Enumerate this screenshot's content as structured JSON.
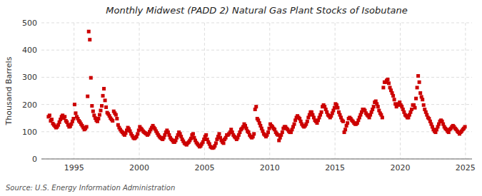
{
  "chart_data": {
    "type": "scatter",
    "title": "Monthly Midwest (PADD 2) Natural Gas Plant Stocks of Isobutane",
    "y_label": "Thousand Barrels",
    "source": "Source: U.S. Energy Information Administration",
    "color": "#cc0000",
    "marker": "square",
    "grid": true,
    "xlim": [
      1992.5,
      2025.5
    ],
    "xticks": [
      1995,
      2000,
      2005,
      2010,
      2015,
      2020,
      2025
    ],
    "ylim": [
      0,
      500
    ],
    "yticks": [
      0,
      100,
      200,
      300,
      400,
      500
    ],
    "x": [
      1993.0416666666667,
      1993.125,
      1993.2083333333333,
      1993.2916666666667,
      1993.375,
      1993.4583333333333,
      1993.5416666666667,
      1993.625,
      1993.7083333333333,
      1993.7916666666667,
      1993.875,
      1993.9583333333333,
      1994.0416666666667,
      1994.125,
      1994.2083333333333,
      1994.2916666666667,
      1994.375,
      1994.4583333333333,
      1994.5416666666667,
      1994.625,
      1994.7083333333333,
      1994.7916666666667,
      1994.875,
      1994.9583333333333,
      1995.0416666666667,
      1995.125,
      1995.2083333333333,
      1995.2916666666667,
      1995.375,
      1995.4583333333333,
      1995.5416666666667,
      1995.625,
      1995.7083333333333,
      1995.7916666666667,
      1995.875,
      1995.9583333333333,
      1996.0416666666667,
      1996.125,
      1996.2083333333333,
      1996.2916666666667,
      1996.375,
      1996.4583333333333,
      1996.5416666666667,
      1996.625,
      1996.7083333333333,
      1996.7916666666667,
      1996.875,
      1996.9583333333333,
      1997.0416666666667,
      1997.125,
      1997.2083333333333,
      1997.2916666666667,
      1997.375,
      1997.4583333333333,
      1997.5416666666667,
      1997.625,
      1997.7083333333333,
      1997.7916666666667,
      1997.875,
      1997.9583333333333,
      1998.0416666666667,
      1998.125,
      1998.2083333333333,
      1998.2916666666667,
      1998.375,
      1998.4583333333333,
      1998.5416666666667,
      1998.625,
      1998.7083333333333,
      1998.7916666666667,
      1998.875,
      1998.9583333333333,
      1999.0416666666667,
      1999.125,
      1999.2083333333333,
      1999.2916666666667,
      1999.375,
      1999.4583333333333,
      1999.5416666666667,
      1999.625,
      1999.7083333333333,
      1999.7916666666667,
      1999.875,
      1999.9583333333333,
      2000.0416666666667,
      2000.125,
      2000.2083333333333,
      2000.2916666666667,
      2000.375,
      2000.4583333333333,
      2000.5416666666667,
      2000.625,
      2000.7083333333333,
      2000.7916666666667,
      2000.875,
      2000.9583333333333,
      2001.0416666666667,
      2001.125,
      2001.2083333333333,
      2001.2916666666667,
      2001.375,
      2001.4583333333333,
      2001.5416666666667,
      2001.625,
      2001.7083333333333,
      2001.7916666666667,
      2001.875,
      2001.9583333333333,
      2002.0416666666667,
      2002.125,
      2002.2083333333333,
      2002.2916666666667,
      2002.375,
      2002.4583333333333,
      2002.5416666666667,
      2002.625,
      2002.7083333333333,
      2002.7916666666667,
      2002.875,
      2002.9583333333333,
      2003.0416666666667,
      2003.125,
      2003.2083333333333,
      2003.2916666666667,
      2003.375,
      2003.4583333333333,
      2003.5416666666667,
      2003.625,
      2003.7083333333333,
      2003.7916666666667,
      2003.875,
      2003.9583333333333,
      2004.0416666666667,
      2004.125,
      2004.2083333333333,
      2004.2916666666667,
      2004.375,
      2004.4583333333333,
      2004.5416666666667,
      2004.625,
      2004.7083333333333,
      2004.7916666666667,
      2004.875,
      2004.9583333333333,
      2005.0416666666667,
      2005.125,
      2005.2083333333333,
      2005.2916666666667,
      2005.375,
      2005.4583333333333,
      2005.5416666666667,
      2005.625,
      2005.7083333333333,
      2005.7916666666667,
      2005.875,
      2005.9583333333333,
      2006.0416666666667,
      2006.125,
      2006.2083333333333,
      2006.2916666666667,
      2006.375,
      2006.4583333333333,
      2006.5416666666667,
      2006.625,
      2006.7083333333333,
      2006.7916666666667,
      2006.875,
      2006.9583333333333,
      2007.0416666666667,
      2007.125,
      2007.2083333333333,
      2007.2916666666667,
      2007.375,
      2007.4583333333333,
      2007.5416666666667,
      2007.625,
      2007.7083333333333,
      2007.7916666666667,
      2007.875,
      2007.9583333333333,
      2008.0416666666667,
      2008.125,
      2008.2083333333333,
      2008.2916666666667,
      2008.375,
      2008.4583333333333,
      2008.5416666666667,
      2008.625,
      2008.7083333333333,
      2008.7916666666667,
      2008.875,
      2008.9583333333333,
      2009.0416666666667,
      2009.125,
      2009.2083333333333,
      2009.2916666666667,
      2009.375,
      2009.4583333333333,
      2009.5416666666667,
      2009.625,
      2009.7083333333333,
      2009.7916666666667,
      2009.875,
      2009.9583333333333,
      2010.0416666666667,
      2010.125,
      2010.2083333333333,
      2010.2916666666667,
      2010.375,
      2010.4583333333333,
      2010.5416666666667,
      2010.625,
      2010.7083333333333,
      2010.7916666666667,
      2010.875,
      2010.9583333333333,
      2011.0416666666667,
      2011.125,
      2011.2083333333333,
      2011.2916666666667,
      2011.375,
      2011.4583333333333,
      2011.5416666666667,
      2011.625,
      2011.7083333333333,
      2011.7916666666667,
      2011.875,
      2011.9583333333333,
      2012.0416666666667,
      2012.125,
      2012.2083333333333,
      2012.2916666666667,
      2012.375,
      2012.4583333333333,
      2012.5416666666667,
      2012.625,
      2012.7083333333333,
      2012.7916666666667,
      2012.875,
      2012.9583333333333,
      2013.0416666666667,
      2013.125,
      2013.2083333333333,
      2013.2916666666667,
      2013.375,
      2013.4583333333333,
      2013.5416666666667,
      2013.625,
      2013.7083333333333,
      2013.7916666666667,
      2013.875,
      2013.9583333333333,
      2014.0416666666667,
      2014.125,
      2014.2083333333333,
      2014.2916666666667,
      2014.375,
      2014.4583333333333,
      2014.5416666666667,
      2014.625,
      2014.7083333333333,
      2014.7916666666667,
      2014.875,
      2014.9583333333333,
      2015.0416666666667,
      2015.125,
      2015.2083333333333,
      2015.2916666666667,
      2015.375,
      2015.4583333333333,
      2015.5416666666667,
      2015.625,
      2015.7083333333333,
      2015.7916666666667,
      2015.875,
      2015.9583333333333,
      2016.0416666666667,
      2016.125,
      2016.2083333333333,
      2016.2916666666667,
      2016.375,
      2016.4583333333333,
      2016.5416666666667,
      2016.625,
      2016.7083333333333,
      2016.7916666666667,
      2016.875,
      2016.9583333333333,
      2017.0416666666667,
      2017.125,
      2017.2083333333333,
      2017.2916666666667,
      2017.375,
      2017.4583333333333,
      2017.5416666666667,
      2017.625,
      2017.7083333333333,
      2017.7916666666667,
      2017.875,
      2017.9583333333333,
      2018.0416666666667,
      2018.125,
      2018.2083333333333,
      2018.2916666666667,
      2018.375,
      2018.4583333333333,
      2018.5416666666667,
      2018.625,
      2018.7083333333333,
      2018.7916666666667,
      2018.875,
      2018.9583333333333,
      2019.0416666666667,
      2019.125,
      2019.2083333333333,
      2019.2916666666667,
      2019.375,
      2019.4583333333333,
      2019.5416666666667,
      2019.625,
      2019.7083333333333,
      2019.7916666666667,
      2019.875,
      2019.9583333333333,
      2020.0416666666667,
      2020.125,
      2020.2083333333333,
      2020.2916666666667,
      2020.375,
      2020.4583333333333,
      2020.5416666666667,
      2020.625,
      2020.7083333333333,
      2020.7916666666667,
      2020.875,
      2020.9583333333333,
      2021.0416666666667,
      2021.125,
      2021.2083333333333,
      2021.2916666666667,
      2021.375,
      2021.4583333333333,
      2021.5416666666667,
      2021.625,
      2021.7083333333333,
      2021.7916666666667,
      2021.875,
      2021.9583333333333,
      2022.0416666666667,
      2022.125,
      2022.2083333333333,
      2022.2916666666667,
      2022.375,
      2022.4583333333333,
      2022.5416666666667,
      2022.625,
      2022.7083333333333,
      2022.7916666666667,
      2022.875,
      2022.9583333333333,
      2023.0416666666667,
      2023.125,
      2023.2083333333333,
      2023.2916666666667,
      2023.375,
      2023.4583333333333,
      2023.5416666666667,
      2023.625,
      2023.7083333333333,
      2023.7916666666667,
      2023.875,
      2023.9583333333333,
      2024.0416666666667,
      2024.125,
      2024.2083333333333,
      2024.2916666666667,
      2024.375,
      2024.4583333333333,
      2024.5416666666667,
      2024.625,
      2024.7083333333333,
      2024.7916666666667,
      2024.875,
      2024.9583333333333
    ],
    "values": [
      155,
      160,
      140,
      145,
      130,
      125,
      120,
      115,
      118,
      125,
      135,
      145,
      155,
      160,
      150,
      155,
      140,
      135,
      125,
      118,
      120,
      128,
      138,
      148,
      200,
      168,
      155,
      148,
      140,
      135,
      128,
      122,
      115,
      108,
      112,
      118,
      230,
      468,
      438,
      298,
      195,
      175,
      160,
      150,
      142,
      138,
      148,
      162,
      178,
      195,
      232,
      258,
      215,
      190,
      170,
      165,
      158,
      150,
      145,
      140,
      175,
      168,
      162,
      148,
      125,
      115,
      108,
      102,
      98,
      92,
      88,
      95,
      105,
      115,
      110,
      102,
      92,
      85,
      78,
      75,
      78,
      82,
      92,
      105,
      118,
      112,
      108,
      102,
      98,
      95,
      92,
      88,
      92,
      100,
      108,
      115,
      122,
      115,
      110,
      102,
      95,
      88,
      82,
      78,
      75,
      72,
      78,
      88,
      98,
      105,
      98,
      88,
      78,
      72,
      68,
      62,
      62,
      68,
      78,
      88,
      98,
      92,
      82,
      72,
      65,
      58,
      55,
      52,
      58,
      62,
      68,
      75,
      88,
      92,
      78,
      68,
      60,
      55,
      50,
      45,
      48,
      55,
      62,
      72,
      82,
      88,
      72,
      62,
      55,
      45,
      42,
      40,
      42,
      48,
      58,
      72,
      82,
      92,
      78,
      68,
      62,
      58,
      72,
      78,
      88,
      88,
      92,
      98,
      108,
      98,
      88,
      82,
      78,
      72,
      78,
      88,
      98,
      108,
      112,
      118,
      128,
      122,
      112,
      102,
      98,
      88,
      82,
      78,
      82,
      92,
      182,
      192,
      148,
      142,
      132,
      122,
      112,
      102,
      92,
      88,
      82,
      88,
      98,
      112,
      128,
      122,
      118,
      112,
      108,
      98,
      92,
      88,
      68,
      78,
      88,
      98,
      112,
      118,
      118,
      112,
      108,
      102,
      98,
      98,
      108,
      118,
      128,
      142,
      152,
      158,
      152,
      148,
      138,
      128,
      122,
      118,
      122,
      128,
      138,
      152,
      162,
      172,
      172,
      162,
      152,
      142,
      138,
      132,
      142,
      152,
      162,
      172,
      192,
      198,
      192,
      182,
      172,
      162,
      158,
      152,
      158,
      168,
      178,
      188,
      202,
      198,
      188,
      172,
      162,
      152,
      142,
      138,
      98,
      108,
      122,
      132,
      148,
      152,
      148,
      142,
      138,
      132,
      128,
      128,
      132,
      142,
      152,
      162,
      172,
      182,
      182,
      178,
      168,
      162,
      158,
      152,
      162,
      172,
      182,
      192,
      208,
      212,
      202,
      192,
      178,
      168,
      162,
      152,
      262,
      282,
      282,
      288,
      292,
      278,
      262,
      252,
      242,
      232,
      218,
      202,
      192,
      198,
      202,
      208,
      198,
      192,
      182,
      172,
      162,
      158,
      152,
      152,
      162,
      172,
      182,
      198,
      198,
      188,
      222,
      262,
      305,
      282,
      242,
      228,
      218,
      198,
      182,
      172,
      162,
      152,
      148,
      138,
      128,
      118,
      108,
      102,
      98,
      108,
      118,
      128,
      138,
      142,
      138,
      128,
      118,
      112,
      108,
      102,
      98,
      108,
      112,
      118,
      122,
      118,
      112,
      108,
      102,
      98,
      92,
      98,
      102,
      108,
      112,
      118
    ]
  }
}
